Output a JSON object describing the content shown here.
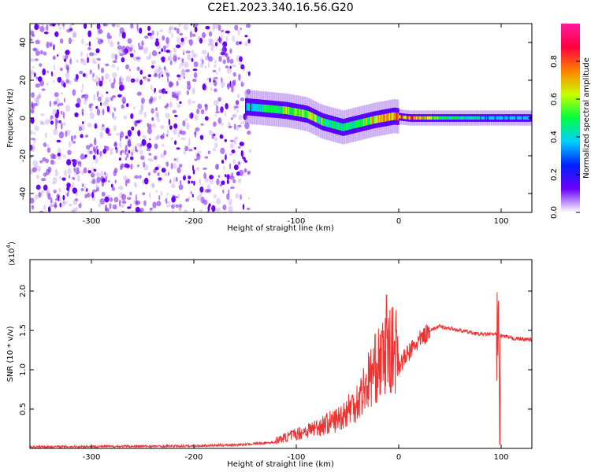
{
  "title": "C2E1.2023.340.16.56.G20",
  "chart_data": [
    {
      "type": "heatmap",
      "xlabel": "Height of straight line (km)",
      "ylabel": "Frequency (Hz)",
      "xlim": [
        -360,
        130
      ],
      "ylim": [
        -50,
        50
      ],
      "xticks": [
        -300,
        -200,
        -100,
        0,
        100
      ],
      "yticks": [
        -40,
        -20,
        0,
        20,
        40
      ],
      "colorbar": {
        "label": "Normalized spectral amplitude",
        "range": [
          0,
          1
        ],
        "ticks": [
          0.0,
          0.2,
          0.4,
          0.6,
          0.8
        ],
        "colors": [
          "#ffffff",
          "#6a00ff",
          "#0020ff",
          "#00d0ff",
          "#00ff40",
          "#c8ff00",
          "#ff8000",
          "#ff0040",
          "#ff1aa0"
        ]
      },
      "band": [
        {
          "x": -150,
          "f": 6,
          "amp": 0.45
        },
        {
          "x": -130,
          "f": 5,
          "amp": 0.55
        },
        {
          "x": -110,
          "f": 4,
          "amp": 0.7
        },
        {
          "x": -90,
          "f": 2,
          "amp": 0.65
        },
        {
          "x": -75,
          "f": -2,
          "amp": 0.6
        },
        {
          "x": -55,
          "f": -5,
          "amp": 0.55
        },
        {
          "x": -40,
          "f": -3,
          "amp": 0.6
        },
        {
          "x": -25,
          "f": -1,
          "amp": 0.75
        },
        {
          "x": -5,
          "f": 1,
          "amp": 0.85
        },
        {
          "x": 10,
          "f": 0,
          "amp": 0.9
        },
        {
          "x": 50,
          "f": 0,
          "amp": 0.55
        },
        {
          "x": 100,
          "f": 0,
          "amp": 0.45
        },
        {
          "x": 130,
          "f": 0,
          "amp": 0.45
        }
      ]
    },
    {
      "type": "line",
      "xlabel": "Height of straight line (km)",
      "ylabel": "SNR (10 * v/v)",
      "yscale_label": "(x10",
      "yscale_exponent": "4",
      "xlim": [
        -360,
        130
      ],
      "ylim": [
        0,
        2.4
      ],
      "xticks": [
        -300,
        -200,
        -100,
        0,
        100
      ],
      "yticks": [
        0.5,
        1.0,
        1.5,
        2.0
      ],
      "color": "#ee3333",
      "trend": [
        {
          "x": -360,
          "y": 0.02
        },
        {
          "x": -200,
          "y": 0.03
        },
        {
          "x": -150,
          "y": 0.05
        },
        {
          "x": -120,
          "y": 0.08
        },
        {
          "x": -100,
          "y": 0.15
        },
        {
          "x": -80,
          "y": 0.22
        },
        {
          "x": -60,
          "y": 0.3
        },
        {
          "x": -40,
          "y": 0.5
        },
        {
          "x": -25,
          "y": 0.8
        },
        {
          "x": -10,
          "y": 1.0
        },
        {
          "x": 0,
          "y": 1.05
        },
        {
          "x": 15,
          "y": 1.3
        },
        {
          "x": 30,
          "y": 1.5
        },
        {
          "x": 40,
          "y": 1.55
        },
        {
          "x": 60,
          "y": 1.5
        },
        {
          "x": 80,
          "y": 1.45
        },
        {
          "x": 95,
          "y": 1.45
        },
        {
          "x": 110,
          "y": 1.4
        },
        {
          "x": 130,
          "y": 1.38
        }
      ],
      "spikes": [
        {
          "x": -12,
          "y": 1.95
        },
        {
          "x": 98,
          "y": 2.35
        },
        {
          "x": 98.5,
          "y": 0.05
        }
      ]
    }
  ]
}
